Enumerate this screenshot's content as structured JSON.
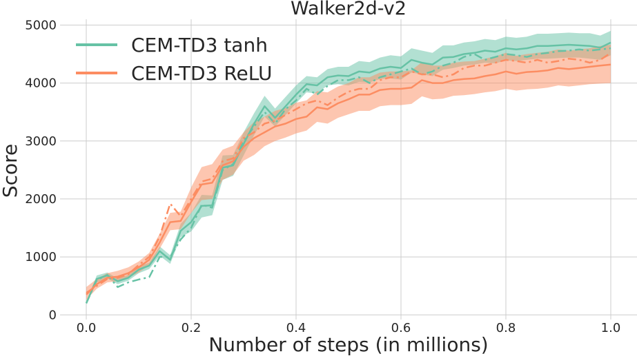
{
  "chart_data": {
    "type": "line",
    "title": "Walker2d-v2",
    "xlabel": "Number of steps (in millions)",
    "ylabel": "Score",
    "xlim": [
      -0.05,
      1.05
    ],
    "ylim": [
      -80,
      5100
    ],
    "xticks": [
      0.0,
      0.2,
      0.4,
      0.6,
      0.8,
      1.0
    ],
    "xtick_labels": [
      "0.0",
      "0.2",
      "0.4",
      "0.6",
      "0.8",
      "1.0"
    ],
    "yticks": [
      0,
      1000,
      2000,
      3000,
      4000,
      5000
    ],
    "ytick_labels": [
      "0",
      "1000",
      "2000",
      "3000",
      "4000",
      "5000"
    ],
    "grid": true,
    "legend_position": "top-left",
    "x": [
      0.0,
      0.02,
      0.04,
      0.06,
      0.08,
      0.1,
      0.12,
      0.14,
      0.16,
      0.18,
      0.2,
      0.22,
      0.24,
      0.26,
      0.28,
      0.3,
      0.32,
      0.34,
      0.36,
      0.38,
      0.4,
      0.42,
      0.44,
      0.46,
      0.48,
      0.5,
      0.52,
      0.54,
      0.56,
      0.58,
      0.6,
      0.62,
      0.64,
      0.66,
      0.68,
      0.7,
      0.72,
      0.74,
      0.76,
      0.78,
      0.8,
      0.82,
      0.84,
      0.86,
      0.88,
      0.9,
      0.92,
      0.94,
      0.96,
      0.98,
      1.0
    ],
    "series": [
      {
        "name": "CEM-TD3 tanh",
        "color": "#66c2a5",
        "line_style": "solid",
        "values": [
          200,
          620,
          680,
          580,
          640,
          780,
          850,
          1100,
          950,
          1450,
          1600,
          1880,
          1890,
          2540,
          2580,
          2950,
          3300,
          3600,
          3400,
          3600,
          3800,
          3980,
          3960,
          4100,
          4130,
          4120,
          4200,
          4180,
          4250,
          4280,
          4260,
          4400,
          4350,
          4320,
          4440,
          4450,
          4500,
          4520,
          4560,
          4540,
          4600,
          4580,
          4600,
          4640,
          4640,
          4650,
          4660,
          4650,
          4640,
          4610,
          4700
        ],
        "band_low": [
          180,
          560,
          630,
          530,
          590,
          720,
          790,
          1020,
          880,
          1340,
          1440,
          1680,
          1720,
          2330,
          2400,
          2750,
          3100,
          3420,
          3250,
          3450,
          3650,
          3840,
          3820,
          3960,
          3980,
          3960,
          4020,
          4010,
          4070,
          4080,
          4060,
          4180,
          4150,
          4120,
          4230,
          4260,
          4300,
          4320,
          4350,
          4340,
          4390,
          4380,
          4400,
          4420,
          4420,
          4430,
          4440,
          4440,
          4420,
          4400,
          4480
        ],
        "band_high": [
          230,
          680,
          730,
          630,
          690,
          840,
          900,
          1180,
          1030,
          1570,
          1760,
          2070,
          2060,
          2750,
          2760,
          3150,
          3480,
          3780,
          3560,
          3760,
          3960,
          4120,
          4100,
          4240,
          4280,
          4280,
          4380,
          4360,
          4440,
          4480,
          4460,
          4600,
          4560,
          4520,
          4650,
          4650,
          4700,
          4720,
          4760,
          4740,
          4800,
          4780,
          4800,
          4850,
          4850,
          4860,
          4870,
          4860,
          4860,
          4820,
          4900
        ]
      },
      {
        "name": "CEM-TD3 tanh (dash-dot)",
        "color": "#66c2a5",
        "line_style": "dashdot",
        "values": [
          200,
          600,
          690,
          480,
          560,
          610,
          650,
          1000,
          1000,
          1300,
          1500,
          1900,
          1850,
          2500,
          2600,
          3000,
          3250,
          3500,
          3300,
          3550,
          3700,
          3900,
          3800,
          3950,
          4050,
          4050,
          4100,
          4000,
          4100,
          4150,
          4200,
          4250,
          4150,
          4200,
          4300,
          4350,
          4450,
          4500,
          4400,
          4450,
          4500,
          4480,
          4450,
          4500,
          4520,
          4550,
          4560,
          4580,
          4560,
          4580,
          4600
        ]
      },
      {
        "name": "CEM-TD3 ReLU",
        "color": "#fc8d62",
        "line_style": "solid",
        "values": [
          350,
          530,
          640,
          660,
          720,
          820,
          950,
          1250,
          1600,
          1620,
          1950,
          2250,
          2280,
          2580,
          2650,
          2900,
          3050,
          3150,
          3250,
          3300,
          3380,
          3420,
          3580,
          3550,
          3650,
          3720,
          3800,
          3800,
          3880,
          3900,
          3900,
          3920,
          4050,
          4000,
          4000,
          4050,
          4070,
          4080,
          4120,
          4150,
          4200,
          4160,
          4190,
          4200,
          4220,
          4260,
          4240,
          4260,
          4280,
          4300,
          4320
        ],
        "band_low": [
          260,
          450,
          560,
          580,
          640,
          730,
          860,
          1140,
          1460,
          1480,
          1760,
          1980,
          2000,
          2330,
          2420,
          2660,
          2760,
          2910,
          3000,
          3060,
          3130,
          3180,
          3330,
          3300,
          3400,
          3460,
          3520,
          3520,
          3600,
          3620,
          3620,
          3640,
          3770,
          3720,
          3730,
          3780,
          3790,
          3810,
          3840,
          3860,
          3900,
          3870,
          3890,
          3900,
          3920,
          3960,
          3940,
          3960,
          3980,
          3990,
          4000
        ],
        "band_high": [
          480,
          620,
          720,
          760,
          820,
          920,
          1070,
          1400,
          1760,
          1780,
          2200,
          2550,
          2600,
          2850,
          2920,
          3150,
          3330,
          3420,
          3520,
          3570,
          3660,
          3700,
          3860,
          3840,
          3940,
          4000,
          4100,
          4100,
          4180,
          4200,
          4200,
          4220,
          4360,
          4300,
          4300,
          4350,
          4370,
          4380,
          4420,
          4460,
          4520,
          4470,
          4500,
          4520,
          4540,
          4580,
          4560,
          4580,
          4600,
          4640,
          4660
        ]
      },
      {
        "name": "CEM-TD3 ReLU (dash-dot)",
        "color": "#fc8d62",
        "line_style": "dashdot",
        "values": [
          380,
          500,
          620,
          640,
          700,
          860,
          1000,
          1350,
          1920,
          1700,
          2000,
          2300,
          2350,
          2650,
          2700,
          3050,
          3150,
          3300,
          3350,
          3450,
          3550,
          3650,
          3700,
          3620,
          3750,
          3850,
          3900,
          3900,
          4050,
          4100,
          4100,
          4200,
          4150,
          4150,
          4100,
          4150,
          4260,
          4300,
          4300,
          4350,
          4400,
          4380,
          4350,
          4400,
          4350,
          4380,
          4420,
          4400,
          4350,
          4400,
          4520
        ]
      }
    ],
    "legend": [
      "CEM-TD3 tanh",
      "CEM-TD3 ReLU"
    ]
  }
}
